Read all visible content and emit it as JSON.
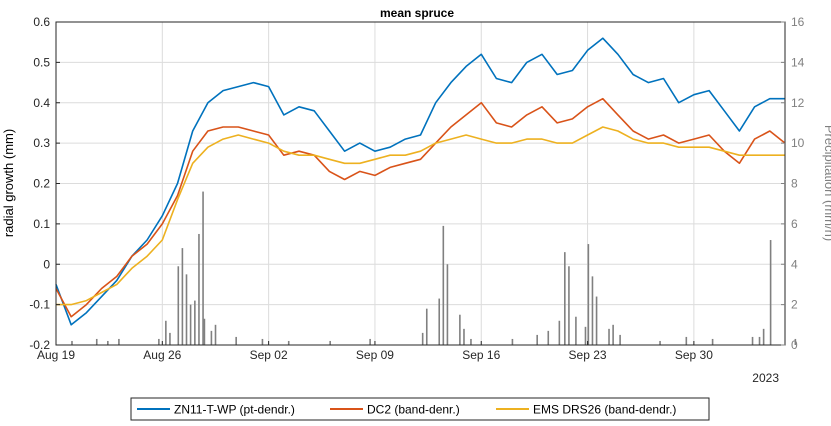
{
  "chart_data": {
    "type": "line",
    "title": "mean spruce",
    "ylabel": "radial growth (mm)",
    "ylabel_right": "Precipitation (mm/h)",
    "year_label": "2023",
    "xlim": [
      "2023-08-19",
      "2023-10-06"
    ],
    "ylim": [
      -0.2,
      0.6
    ],
    "ylim_right": [
      0,
      16
    ],
    "grid": true,
    "legend_position": "bottom-outside",
    "x_ticks": [
      {
        "date": "2023-08-19",
        "label": "Aug 19"
      },
      {
        "date": "2023-08-26",
        "label": "Aug 26"
      },
      {
        "date": "2023-09-02",
        "label": "Sep 02"
      },
      {
        "date": "2023-09-09",
        "label": "Sep 09"
      },
      {
        "date": "2023-09-16",
        "label": "Sep 16"
      },
      {
        "date": "2023-09-23",
        "label": "Sep 23"
      },
      {
        "date": "2023-09-30",
        "label": "Sep 30"
      }
    ],
    "y_ticks": [
      "-0.2",
      "-0.1",
      "0",
      "0.1",
      "0.2",
      "0.3",
      "0.4",
      "0.5",
      "0.6"
    ],
    "y_ticks_right": [
      "0",
      "2",
      "4",
      "6",
      "8",
      "10",
      "12",
      "14",
      "16"
    ],
    "colors": {
      "axis_left": "#000000",
      "axis_right": "#808080",
      "precip": "#808080"
    },
    "series": [
      {
        "name": "ZN11-T-WP (pt-dendr.)",
        "color": "#0072BD",
        "x": [
          "2023-08-19",
          "2023-08-20",
          "2023-08-21",
          "2023-08-22",
          "2023-08-23",
          "2023-08-24",
          "2023-08-25",
          "2023-08-26",
          "2023-08-27",
          "2023-08-28",
          "2023-08-29",
          "2023-08-30",
          "2023-08-31",
          "2023-09-01",
          "2023-09-02",
          "2023-09-03",
          "2023-09-04",
          "2023-09-05",
          "2023-09-06",
          "2023-09-07",
          "2023-09-08",
          "2023-09-09",
          "2023-09-10",
          "2023-09-11",
          "2023-09-12",
          "2023-09-13",
          "2023-09-14",
          "2023-09-15",
          "2023-09-16",
          "2023-09-17",
          "2023-09-18",
          "2023-09-19",
          "2023-09-20",
          "2023-09-21",
          "2023-09-22",
          "2023-09-23",
          "2023-09-24",
          "2023-09-25",
          "2023-09-26",
          "2023-09-27",
          "2023-09-28",
          "2023-09-29",
          "2023-09-30",
          "2023-10-01",
          "2023-10-02",
          "2023-10-03",
          "2023-10-04",
          "2023-10-05",
          "2023-10-06"
        ],
        "y": [
          -0.05,
          -0.15,
          -0.12,
          -0.08,
          -0.04,
          0.02,
          0.06,
          0.12,
          0.2,
          0.33,
          0.4,
          0.43,
          0.44,
          0.45,
          0.44,
          0.37,
          0.39,
          0.38,
          0.33,
          0.28,
          0.3,
          0.28,
          0.29,
          0.31,
          0.32,
          0.4,
          0.45,
          0.49,
          0.52,
          0.46,
          0.45,
          0.5,
          0.52,
          0.47,
          0.48,
          0.53,
          0.56,
          0.52,
          0.47,
          0.45,
          0.46,
          0.4,
          0.42,
          0.43,
          0.38,
          0.33,
          0.39,
          0.41,
          0.41
        ]
      },
      {
        "name": "DC2 (band-denr.)",
        "color": "#D95319",
        "x": [
          "2023-08-19",
          "2023-08-20",
          "2023-08-21",
          "2023-08-22",
          "2023-08-23",
          "2023-08-24",
          "2023-08-25",
          "2023-08-26",
          "2023-08-27",
          "2023-08-28",
          "2023-08-29",
          "2023-08-30",
          "2023-08-31",
          "2023-09-01",
          "2023-09-02",
          "2023-09-03",
          "2023-09-04",
          "2023-09-05",
          "2023-09-06",
          "2023-09-07",
          "2023-09-08",
          "2023-09-09",
          "2023-09-10",
          "2023-09-11",
          "2023-09-12",
          "2023-09-13",
          "2023-09-14",
          "2023-09-15",
          "2023-09-16",
          "2023-09-17",
          "2023-09-18",
          "2023-09-19",
          "2023-09-20",
          "2023-09-21",
          "2023-09-22",
          "2023-09-23",
          "2023-09-24",
          "2023-09-25",
          "2023-09-26",
          "2023-09-27",
          "2023-09-28",
          "2023-09-29",
          "2023-09-30",
          "2023-10-01",
          "2023-10-02",
          "2023-10-03",
          "2023-10-04",
          "2023-10-05",
          "2023-10-06"
        ],
        "y": [
          -0.06,
          -0.13,
          -0.1,
          -0.06,
          -0.03,
          0.02,
          0.05,
          0.1,
          0.17,
          0.28,
          0.33,
          0.34,
          0.34,
          0.33,
          0.32,
          0.27,
          0.28,
          0.27,
          0.23,
          0.21,
          0.23,
          0.22,
          0.24,
          0.25,
          0.26,
          0.3,
          0.34,
          0.37,
          0.4,
          0.35,
          0.34,
          0.37,
          0.39,
          0.35,
          0.36,
          0.39,
          0.41,
          0.37,
          0.33,
          0.31,
          0.32,
          0.3,
          0.31,
          0.32,
          0.28,
          0.25,
          0.31,
          0.33,
          0.3
        ]
      },
      {
        "name": "EMS DRS26 (band-dendr.)",
        "color": "#EDB120",
        "x": [
          "2023-08-19",
          "2023-08-20",
          "2023-08-21",
          "2023-08-22",
          "2023-08-23",
          "2023-08-24",
          "2023-08-25",
          "2023-08-26",
          "2023-08-27",
          "2023-08-28",
          "2023-08-29",
          "2023-08-30",
          "2023-08-31",
          "2023-09-01",
          "2023-09-02",
          "2023-09-03",
          "2023-09-04",
          "2023-09-05",
          "2023-09-06",
          "2023-09-07",
          "2023-09-08",
          "2023-09-09",
          "2023-09-10",
          "2023-09-11",
          "2023-09-12",
          "2023-09-13",
          "2023-09-14",
          "2023-09-15",
          "2023-09-16",
          "2023-09-17",
          "2023-09-18",
          "2023-09-19",
          "2023-09-20",
          "2023-09-21",
          "2023-09-22",
          "2023-09-23",
          "2023-09-24",
          "2023-09-25",
          "2023-09-26",
          "2023-09-27",
          "2023-09-28",
          "2023-09-29",
          "2023-09-30",
          "2023-10-01",
          "2023-10-02",
          "2023-10-03",
          "2023-10-04",
          "2023-10-05",
          "2023-10-06"
        ],
        "y": [
          -0.1,
          -0.1,
          -0.09,
          -0.07,
          -0.05,
          -0.01,
          0.02,
          0.06,
          0.16,
          0.25,
          0.29,
          0.31,
          0.32,
          0.31,
          0.3,
          0.28,
          0.27,
          0.27,
          0.26,
          0.25,
          0.25,
          0.26,
          0.27,
          0.27,
          0.28,
          0.3,
          0.31,
          0.32,
          0.31,
          0.3,
          0.3,
          0.31,
          0.31,
          0.3,
          0.3,
          0.32,
          0.34,
          0.33,
          0.31,
          0.3,
          0.3,
          0.29,
          0.29,
          0.29,
          0.28,
          0.27,
          0.27,
          0.27,
          0.27
        ]
      }
    ],
    "precipitation": {
      "name": "Precipitation",
      "x": [
        "2023-08-20",
        "2023-08-21",
        "2023-08-22",
        "2023-08-23",
        "2023-08-25",
        "2023-08-26",
        "2023-08-26",
        "2023-08-27",
        "2023-08-27",
        "2023-08-27",
        "2023-08-27",
        "2023-08-28",
        "2023-08-28",
        "2023-08-28",
        "2023-08-28",
        "2023-08-29",
        "2023-08-29",
        "2023-08-30",
        "2023-09-01",
        "2023-09-03",
        "2023-09-06",
        "2023-09-08",
        "2023-09-12",
        "2023-09-12",
        "2023-09-13",
        "2023-09-13",
        "2023-09-13",
        "2023-09-14",
        "2023-09-14",
        "2023-09-15",
        "2023-09-18",
        "2023-09-19",
        "2023-09-20",
        "2023-09-21",
        "2023-09-21",
        "2023-09-21",
        "2023-09-22",
        "2023-09-22",
        "2023-09-23",
        "2023-09-23",
        "2023-09-23",
        "2023-09-24",
        "2023-09-24",
        "2023-09-25",
        "2023-09-27",
        "2023-09-29",
        "2023-10-01",
        "2023-10-03",
        "2023-10-04",
        "2023-10-04",
        "2023-10-05",
        "2023-10-06"
      ],
      "y": [
        0.2,
        0.3,
        0.2,
        0.3,
        0.3,
        0.6,
        1.2,
        2.0,
        3.5,
        4.8,
        3.9,
        7.6,
        5.5,
        2.2,
        1.3,
        1.0,
        0.7,
        0.4,
        0.3,
        0.2,
        0.2,
        0.3,
        1.8,
        0.6,
        4.0,
        5.9,
        2.3,
        0.8,
        1.5,
        0.3,
        0.3,
        0.5,
        0.7,
        1.2,
        3.9,
        4.6,
        1.4,
        0.9,
        2.4,
        3.4,
        5.0,
        1.0,
        0.8,
        0.5,
        0.2,
        0.4,
        0.3,
        0.4,
        0.8,
        0.4,
        5.2,
        0.3
      ]
    }
  }
}
